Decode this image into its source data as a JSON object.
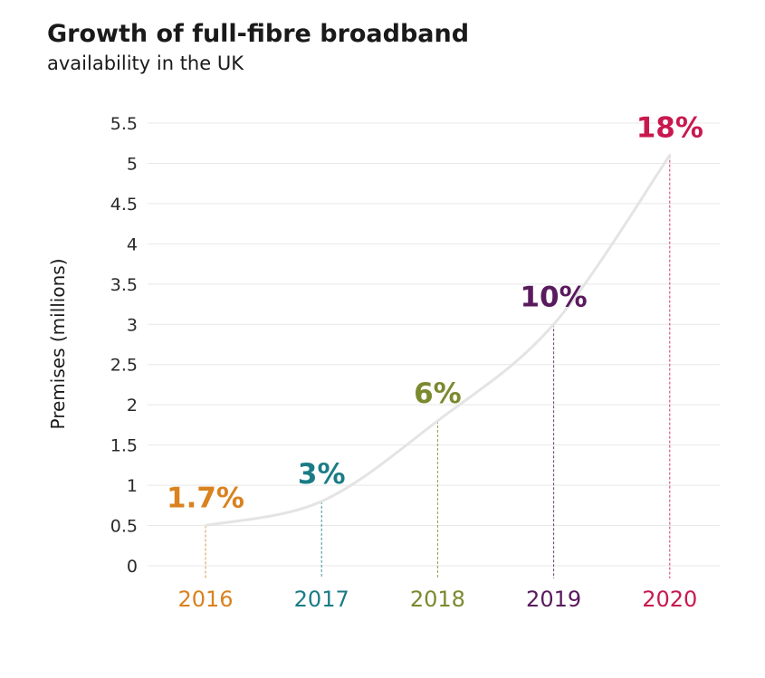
{
  "header": {
    "title": "Growth of full-fibre broadband",
    "subtitle": "availability in the UK"
  },
  "chart_data": {
    "type": "line",
    "title": "Growth of full-fibre broadband",
    "subtitle": "availability in the UK",
    "xlabel": "",
    "ylabel": "Premises (millions)",
    "ylim": [
      0,
      5.5
    ],
    "yticks": [
      0,
      0.5,
      1,
      1.5,
      2,
      2.5,
      3,
      3.5,
      4,
      4.5,
      5,
      5.5
    ],
    "ytick_labels": [
      "0",
      "0.5",
      "1",
      "1.5",
      "2",
      "2.5",
      "3",
      "3.5",
      "4",
      "4.5",
      "5",
      "5.5"
    ],
    "grid": true,
    "categories": [
      "2016",
      "2017",
      "2018",
      "2019",
      "2020"
    ],
    "values": [
      0.5,
      0.8,
      1.8,
      3.0,
      5.1
    ],
    "labels": [
      "1.7%",
      "3%",
      "6%",
      "10%",
      "18%"
    ],
    "colors": [
      "#d9821f",
      "#1a7c86",
      "#7a8a2e",
      "#5a1a5e",
      "#c8194f"
    ],
    "line_color": "#e4e4e4",
    "grid_color": "#e8e8e8"
  }
}
